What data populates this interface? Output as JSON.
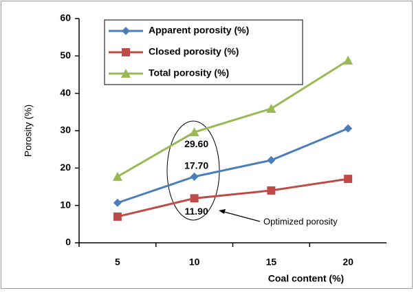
{
  "chart_data": {
    "type": "line",
    "xlabel": "Coal content (%)",
    "ylabel": "Porosity (%)",
    "categories": [
      "5",
      "10",
      "15",
      "20"
    ],
    "series": [
      {
        "name": "Apparent porosity (%)",
        "color": "#4a7ebb",
        "marker": "diamond",
        "values": [
          10.7,
          17.7,
          22.1,
          30.6
        ],
        "value_labels": [
          null,
          "17.70",
          null,
          null
        ]
      },
      {
        "name": "Closed porosity (%)",
        "color": "#be4b48",
        "marker": "square",
        "values": [
          7.0,
          11.9,
          14.0,
          17.1
        ],
        "value_labels": [
          null,
          "11.90",
          null,
          null
        ]
      },
      {
        "name": "Total porosity (%)",
        "color": "#98b954",
        "marker": "triangle",
        "values": [
          17.7,
          29.6,
          35.9,
          48.8
        ],
        "value_labels": [
          null,
          "29.60",
          null,
          null
        ]
      }
    ],
    "ylim": [
      0,
      60
    ],
    "yticks": [
      0,
      10,
      20,
      30,
      40,
      50,
      60
    ],
    "annotation": "Optimized porosity",
    "legend": "upper left",
    "grid": false
  }
}
